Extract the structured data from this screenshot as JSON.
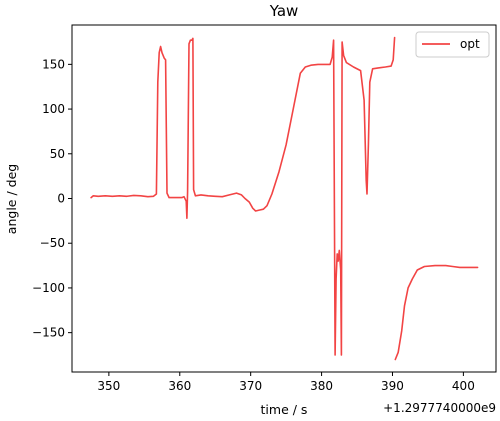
{
  "chart_data": {
    "type": "line",
    "title": "Yaw",
    "xlabel": "time / s",
    "ylabel": "angle / deg",
    "x_offset_label": "+1.2977740000e9",
    "xlim": [
      344.8,
      404.6
    ],
    "ylim": [
      -194,
      194
    ],
    "xticks": [
      350,
      360,
      370,
      380,
      390,
      400
    ],
    "yticks": [
      -150,
      -100,
      -50,
      0,
      50,
      100,
      150
    ],
    "legend": {
      "position": "top-right",
      "entries": [
        "opt"
      ]
    },
    "series": [
      {
        "name": "opt",
        "color": "#f24444",
        "segments": [
          [
            [
              347.5,
              1
            ],
            [
              347.8,
              3
            ],
            [
              348.5,
              2.5
            ],
            [
              349.5,
              3
            ],
            [
              350.5,
              2.5
            ],
            [
              351.5,
              3
            ],
            [
              352.5,
              2.5
            ],
            [
              353.5,
              3.5
            ],
            [
              354.5,
              3
            ],
            [
              355.5,
              2
            ],
            [
              356.3,
              2.5
            ],
            [
              356.7,
              5
            ],
            [
              356.9,
              130
            ],
            [
              357.1,
              163
            ],
            [
              357.3,
              170
            ],
            [
              357.5,
              163
            ],
            [
              357.8,
              157
            ],
            [
              358.0,
              155
            ],
            [
              358.2,
              6
            ],
            [
              358.5,
              1
            ],
            [
              359.5,
              1
            ],
            [
              360.3,
              1
            ],
            [
              360.6,
              2
            ],
            [
              360.9,
              -3
            ],
            [
              361.0,
              -22
            ],
            [
              361.1,
              8
            ],
            [
              361.3,
              173
            ],
            [
              361.5,
              177
            ],
            [
              361.7,
              177
            ],
            [
              361.85,
              179
            ],
            [
              361.95,
              10
            ],
            [
              362.2,
              3
            ],
            [
              363,
              4
            ],
            [
              364,
              3
            ],
            [
              365,
              2.5
            ],
            [
              366,
              2
            ],
            [
              367,
              4
            ],
            [
              368,
              6
            ],
            [
              368.7,
              4
            ],
            [
              369.2,
              0
            ],
            [
              369.8,
              -4
            ],
            [
              370.3,
              -11
            ],
            [
              370.7,
              -14
            ],
            [
              371.2,
              -13
            ],
            [
              371.8,
              -12
            ],
            [
              372.3,
              -8
            ],
            [
              373,
              5
            ],
            [
              374,
              30
            ],
            [
              375,
              60
            ],
            [
              376,
              100
            ],
            [
              377,
              140
            ],
            [
              377.7,
              147
            ],
            [
              378.5,
              149
            ],
            [
              379.5,
              150
            ],
            [
              380.5,
              150
            ],
            [
              381.2,
              150
            ],
            [
              381.5,
              158
            ],
            [
              381.7,
              177
            ],
            [
              381.9,
              -175
            ],
            [
              382.05,
              -90
            ],
            [
              382.2,
              -62
            ],
            [
              382.35,
              -70
            ],
            [
              382.5,
              -58
            ],
            [
              382.7,
              -80
            ],
            [
              382.8,
              -175
            ],
            [
              382.9,
              175
            ],
            [
              383.1,
              160
            ],
            [
              383.5,
              152
            ],
            [
              384.5,
              147
            ],
            [
              385.5,
              143
            ],
            [
              386.0,
              110
            ],
            [
              386.3,
              20
            ],
            [
              386.4,
              5
            ],
            [
              386.6,
              60
            ],
            [
              386.8,
              130
            ],
            [
              387.2,
              145
            ],
            [
              388,
              146
            ],
            [
              389,
              147
            ],
            [
              389.8,
              148
            ],
            [
              390.1,
              155
            ],
            [
              390.3,
              180
            ]
          ],
          [
            [
              390.4,
              -180
            ],
            [
              390.8,
              -172
            ],
            [
              391.3,
              -148
            ],
            [
              391.7,
              -120
            ],
            [
              392.2,
              -100
            ],
            [
              392.8,
              -90
            ],
            [
              393.5,
              -80
            ],
            [
              394.5,
              -76
            ],
            [
              396,
              -75
            ],
            [
              397.5,
              -75
            ],
            [
              398.5,
              -76
            ],
            [
              399.5,
              -77
            ],
            [
              400.5,
              -77
            ],
            [
              401.5,
              -77
            ],
            [
              402,
              -77
            ]
          ]
        ]
      }
    ]
  }
}
